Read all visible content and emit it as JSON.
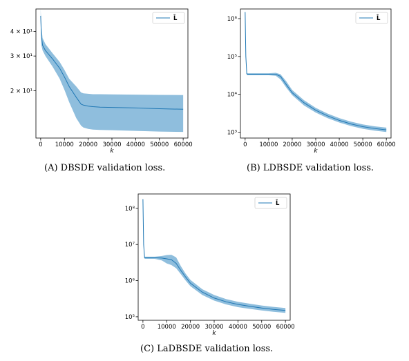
{
  "figures": [
    {
      "caption": "(A) DBSDE validation loss.",
      "chart_data": {
        "type": "area",
        "yscale": "log",
        "xlabel": "k",
        "ylabel": "",
        "xlim": [
          -2000,
          62000
        ],
        "ylim": [
          11.5,
          52
        ],
        "xticks": [
          0,
          10000,
          20000,
          30000,
          40000,
          50000,
          60000
        ],
        "xtick_labels": [
          "0",
          "10000",
          "20000",
          "30000",
          "40000",
          "50000",
          "60000"
        ],
        "yticks": [
          20,
          30,
          40
        ],
        "ytick_labels": [
          "2 × 10¹",
          "3 × 10¹",
          "4 × 10¹"
        ],
        "legend": {
          "label": "L̄",
          "placement": "top-right"
        },
        "series": [
          {
            "name": "L̄",
            "color": "#1f77b4",
            "band_color": "#8fbedd",
            "x": [
              0,
              300,
              800,
              2000,
              5000,
              8000,
              10000,
              12000,
              15000,
              17000,
              18000,
              20000,
              22000,
              25000,
              30000,
              40000,
              50000,
              60000
            ],
            "y": [
              48,
              38,
              34,
              32,
              29,
              26,
              23.5,
              21,
              18.5,
              17.1,
              16.9,
              16.7,
              16.6,
              16.5,
              16.45,
              16.35,
              16.2,
              16.1
            ],
            "lower": [
              45,
              34,
              32,
              30,
              26.5,
              23,
              20.2,
              17.5,
              14.5,
              13.3,
              13.0,
              12.8,
              12.7,
              12.65,
              12.6,
              12.5,
              12.4,
              12.35
            ],
            "upper": [
              52,
              42,
              37,
              34.5,
              31,
              28,
              25.5,
              23,
              21,
              19.6,
              19.4,
              19.3,
              19.2,
              19.2,
              19.15,
              19.1,
              19.05,
              19.0
            ]
          }
        ]
      }
    },
    {
      "caption": "(B) LDBSDE validation loss.",
      "chart_data": {
        "type": "area",
        "yscale": "log",
        "xlabel": "k",
        "ylabel": "",
        "xlim": [
          -2000,
          62000
        ],
        "ylim": [
          700,
          1800000
        ],
        "xticks": [
          0,
          10000,
          20000,
          30000,
          40000,
          50000,
          60000
        ],
        "xtick_labels": [
          "0",
          "10000",
          "20000",
          "30000",
          "40000",
          "50000",
          "60000"
        ],
        "yticks": [
          1000,
          10000,
          100000,
          1000000
        ],
        "ytick_labels": [
          "10³",
          "10⁴",
          "10⁵",
          "10⁶"
        ],
        "legend": {
          "label": "L̄",
          "placement": "top-right"
        },
        "series": [
          {
            "name": "L̄",
            "color": "#1f77b4",
            "band_color": "#8fbedd",
            "x": [
              0,
              300,
              700,
              1000,
              5000,
              10000,
              13000,
              15000,
              17500,
              20000,
              25000,
              30000,
              35000,
              40000,
              45000,
              50000,
              55000,
              60000
            ],
            "y": [
              1500000,
              100000,
              35000,
              34000,
              34000,
              34000,
              34000,
              30000,
              18000,
              11000,
              6000,
              3800,
              2700,
              2050,
              1650,
              1400,
              1250,
              1150
            ],
            "lower": [
              1500000,
              90000,
              33000,
              32000,
              32000,
              32000,
              31000,
              25000,
              15000,
              9500,
              5100,
              3300,
              2350,
              1800,
              1450,
              1230,
              1100,
              1010
            ],
            "upper": [
              1500000,
              110000,
              37000,
              36000,
              36000,
              36000,
              37000,
              34000,
              22000,
              13000,
              7000,
              4400,
              3100,
              2350,
              1900,
              1600,
              1430,
              1320
            ]
          }
        ]
      }
    },
    {
      "caption": "(C) LaDBSDE validation loss.",
      "chart_data": {
        "type": "area",
        "yscale": "log",
        "xlabel": "k",
        "ylabel": "",
        "xlim": [
          -2000,
          62000
        ],
        "ylim": [
          80000,
          250000000
        ],
        "xticks": [
          0,
          10000,
          20000,
          30000,
          40000,
          50000,
          60000
        ],
        "xtick_labels": [
          "0",
          "10000",
          "20000",
          "30000",
          "40000",
          "50000",
          "60000"
        ],
        "yticks": [
          100000,
          1000000,
          10000000,
          100000000
        ],
        "ytick_labels": [
          "10⁵",
          "10⁶",
          "10⁷",
          "10⁸"
        ],
        "legend": {
          "label": "L̄",
          "placement": "top-right"
        },
        "series": [
          {
            "name": "L̄",
            "color": "#1f77b4",
            "band_color": "#8fbedd",
            "x": [
              0,
              300,
              700,
              1000,
              5000,
              8000,
              10000,
              12000,
              14000,
              16000,
              18000,
              20000,
              25000,
              30000,
              35000,
              40000,
              45000,
              50000,
              55000,
              60000
            ],
            "y": [
              180000000,
              10000000,
              4300000,
              4300000,
              4300000,
              4200000,
              4000000,
              3800000,
              3000000,
              1900000,
              1250000,
              850000,
              480000,
              330000,
              260000,
              220000,
              195000,
              175000,
              160000,
              150000
            ],
            "lower": [
              180000000,
              9000000,
              4000000,
              4000000,
              4000000,
              3600000,
              3000000,
              2700000,
              2200000,
              1500000,
              1000000,
              700000,
              400000,
              280000,
              220000,
              185000,
              165000,
              150000,
              137000,
              128000
            ],
            "upper": [
              180000000,
              11000000,
              4600000,
              4600000,
              4600000,
              4800000,
              5100000,
              5200000,
              4400000,
              2500000,
              1550000,
              1050000,
              580000,
              400000,
              310000,
              260000,
              230000,
              205000,
              188000,
              175000
            ]
          }
        ]
      }
    }
  ]
}
